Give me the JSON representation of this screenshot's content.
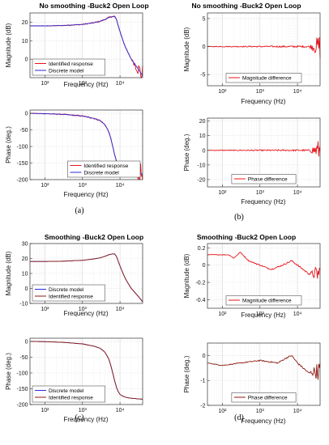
{
  "colors": {
    "red": "#e8141b",
    "blue": "#2a2ad8",
    "darkred": "#8b1a10",
    "grid": "#d9d9d9"
  },
  "chart_data": [
    {
      "panel": "(a)",
      "type": "line",
      "xscale": "log",
      "title": "No smoothing -Buck2 Open Loop",
      "subplots": [
        {
          "ylabel": "Magnitude (dB)",
          "xlabel": "Frequency (Hz)",
          "xlim": [
            40,
            40000
          ],
          "ylim": [
            -10,
            25
          ],
          "yticks": [
            20,
            10,
            0
          ],
          "xticks": [
            {
              "v": 100,
              "t": "10²"
            },
            {
              "v": 1000,
              "t": "10³"
            },
            {
              "v": 10000,
              "t": "10⁴"
            }
          ],
          "legend": "bottom-left",
          "series": [
            {
              "name": "Identified response",
              "color": "red",
              "noisy": true,
              "x": [
                40,
                100,
                300,
                1000,
                2000,
                3000,
                4000,
                5000,
                6000,
                7000,
                7500,
                8000,
                9000,
                10000,
                12000,
                15000,
                20000,
                30000,
                40000
              ],
              "y": [
                18,
                18,
                18.2,
                18.8,
                19.7,
                20.5,
                21.5,
                22.5,
                23,
                23.2,
                22.8,
                21.5,
                18,
                15,
                10,
                5,
                0,
                -5,
                -9
              ]
            },
            {
              "name": "Discrete model",
              "color": "blue",
              "noisy": false,
              "x": [
                40,
                100,
                300,
                1000,
                2000,
                3000,
                4000,
                5000,
                6000,
                7000,
                7500,
                8000,
                9000,
                10000,
                12000,
                15000,
                20000,
                30000,
                40000
              ],
              "y": [
                18,
                18,
                18.2,
                18.8,
                19.7,
                20.5,
                21.5,
                22.5,
                23,
                23.2,
                22.8,
                21.5,
                18,
                15,
                10,
                5,
                0,
                -5,
                -9
              ]
            }
          ]
        },
        {
          "ylabel": "Phase (deg.)",
          "xlabel": "Frequency (Hz)",
          "xlim": [
            40,
            40000
          ],
          "ylim": [
            -200,
            10
          ],
          "yticks": [
            0,
            -50,
            -100,
            -150,
            -200
          ],
          "xticks": [
            {
              "v": 100,
              "t": "10²"
            },
            {
              "v": 1000,
              "t": "10³"
            },
            {
              "v": 10000,
              "t": "10⁴"
            }
          ],
          "legend": "bottom-right",
          "series": [
            {
              "name": "Identified response",
              "color": "red",
              "noisy": true,
              "x": [
                40,
                100,
                300,
                1000,
                2000,
                3000,
                4000,
                5000,
                6000,
                7000,
                8000,
                9000,
                10000,
                12000,
                15000,
                20000,
                30000,
                40000
              ],
              "y": [
                0,
                -1,
                -3,
                -8,
                -15,
                -22,
                -35,
                -55,
                -85,
                -120,
                -145,
                -160,
                -168,
                -174,
                -178,
                -180,
                -182,
                -183
              ]
            },
            {
              "name": "Discrete model",
              "color": "blue",
              "noisy": false,
              "x": [
                40,
                100,
                300,
                1000,
                2000,
                3000,
                4000,
                5000,
                6000,
                7000,
                8000,
                9000,
                10000,
                12000,
                15000,
                20000,
                30000,
                40000
              ],
              "y": [
                0,
                -1,
                -3,
                -8,
                -15,
                -22,
                -35,
                -55,
                -85,
                -120,
                -145,
                -160,
                -168,
                -174,
                -178,
                -180,
                -182,
                -183
              ]
            }
          ]
        }
      ]
    },
    {
      "panel": "(b)",
      "type": "line",
      "xscale": "log",
      "title": "No smoothing -Buck2 Open Loop",
      "subplots": [
        {
          "ylabel": "Magnitude (dB)",
          "xlabel": "Frequency (Hz)",
          "xlim": [
            40,
            40000
          ],
          "ylim": [
            -7,
            6
          ],
          "yticks": [
            5,
            0,
            -5
          ],
          "xticks": [
            {
              "v": 100,
              "t": "10²"
            },
            {
              "v": 1000,
              "t": "10³"
            },
            {
              "v": 10000,
              "t": "10⁴"
            }
          ],
          "legend": "bottom-center",
          "series": [
            {
              "name": "Magnitude difference",
              "color": "red",
              "noisy": true,
              "x": [
                40,
                100,
                1000,
                5000,
                10000,
                20000,
                30000,
                40000
              ],
              "y": [
                0,
                0,
                0,
                0,
                0,
                0,
                0,
                0
              ]
            }
          ]
        },
        {
          "ylabel": "Phase (deg.)",
          "xlabel": "Frequency (Hz)",
          "xlim": [
            40,
            40000
          ],
          "ylim": [
            -25,
            22
          ],
          "yticks": [
            20,
            10,
            0,
            -10,
            -20
          ],
          "xticks": [
            {
              "v": 100,
              "t": "10²"
            },
            {
              "v": 1000,
              "t": "10³"
            },
            {
              "v": 10000,
              "t": "10⁴"
            }
          ],
          "legend": "bottom-center",
          "series": [
            {
              "name": "Phase difference",
              "color": "red",
              "noisy": true,
              "x": [
                40,
                100,
                1000,
                5000,
                10000,
                20000,
                30000,
                40000
              ],
              "y": [
                0,
                0,
                0,
                0,
                0,
                0,
                0,
                0
              ]
            }
          ]
        }
      ]
    },
    {
      "panel": "(c)",
      "type": "line",
      "xscale": "log",
      "title": "Smoothing -Buck2 Open Loop",
      "subplots": [
        {
          "ylabel": "Magnitude (dB)",
          "xlabel": "Frequency (Hz)",
          "xlim": [
            40,
            40000
          ],
          "ylim": [
            -10,
            30
          ],
          "yticks": [
            30,
            20,
            10,
            0,
            -10
          ],
          "xticks": [
            {
              "v": 100,
              "t": "10²"
            },
            {
              "v": 1000,
              "t": "10³"
            },
            {
              "v": 10000,
              "t": "10⁴"
            }
          ],
          "legend": "bottom-left",
          "series": [
            {
              "name": "Discrete model",
              "color": "blue",
              "noisy": false,
              "x": [
                40,
                100,
                300,
                1000,
                2000,
                3000,
                4000,
                5000,
                6000,
                7000,
                7500,
                8000,
                9000,
                10000,
                12000,
                15000,
                20000,
                30000,
                40000
              ],
              "y": [
                18,
                18,
                18.2,
                18.8,
                19.7,
                20.5,
                21.5,
                22.5,
                23,
                23.2,
                22.8,
                21.5,
                18,
                15,
                10,
                5,
                0,
                -5,
                -9
              ]
            },
            {
              "name": "Identified response",
              "color": "darkred",
              "noisy": false,
              "x": [
                40,
                100,
                300,
                1000,
                2000,
                3000,
                4000,
                5000,
                6000,
                7000,
                7500,
                8000,
                9000,
                10000,
                12000,
                15000,
                20000,
                30000,
                40000
              ],
              "y": [
                18,
                18,
                18.2,
                18.8,
                19.7,
                20.5,
                21.5,
                22.5,
                23,
                23.2,
                22.8,
                21.5,
                18,
                15,
                10,
                5,
                0,
                -5,
                -9
              ]
            }
          ]
        },
        {
          "ylabel": "Phase (deg.)",
          "xlabel": "Frequency (Hz)",
          "xlim": [
            40,
            40000
          ],
          "ylim": [
            -200,
            10
          ],
          "yticks": [
            0,
            -50,
            -100,
            -150,
            -200
          ],
          "xticks": [
            {
              "v": 100,
              "t": "10²"
            },
            {
              "v": 1000,
              "t": "10³"
            },
            {
              "v": 10000,
              "t": "10⁴"
            }
          ],
          "legend": "bottom-left",
          "series": [
            {
              "name": "Discrete model",
              "color": "blue",
              "noisy": false,
              "x": [
                40,
                100,
                300,
                1000,
                2000,
                3000,
                4000,
                5000,
                6000,
                7000,
                8000,
                9000,
                10000,
                12000,
                15000,
                20000,
                30000,
                40000
              ],
              "y": [
                0,
                -1,
                -3,
                -8,
                -15,
                -22,
                -35,
                -55,
                -85,
                -120,
                -145,
                -160,
                -168,
                -174,
                -178,
                -180,
                -182,
                -183
              ]
            },
            {
              "name": "Identified response",
              "color": "darkred",
              "noisy": false,
              "x": [
                40,
                100,
                300,
                1000,
                2000,
                3000,
                4000,
                5000,
                6000,
                7000,
                8000,
                9000,
                10000,
                12000,
                15000,
                20000,
                30000,
                40000
              ],
              "y": [
                0,
                -1,
                -3,
                -8,
                -15,
                -22,
                -35,
                -55,
                -85,
                -120,
                -145,
                -160,
                -168,
                -174,
                -178,
                -180,
                -182,
                -183
              ]
            }
          ]
        }
      ]
    },
    {
      "panel": "(d)",
      "type": "line",
      "xscale": "log",
      "title": "Smoothing -Buck2 Open Loop",
      "subplots": [
        {
          "ylabel": "Magnitude (dB)",
          "xlabel": "Frequency (Hz)",
          "xlim": [
            40,
            40000
          ],
          "ylim": [
            -0.5,
            0.25
          ],
          "yticks": [
            0.2,
            0,
            -0.2,
            -0.4
          ],
          "xticks": [
            {
              "v": 100,
              "t": "10²"
            },
            {
              "v": 1000,
              "t": "10³"
            },
            {
              "v": 10000,
              "t": "10⁴"
            }
          ],
          "legend": "bottom-center",
          "series": [
            {
              "name": "Magnitude difference",
              "color": "red",
              "noisy": true,
              "x": [
                40,
                100,
                150,
                200,
                300,
                500,
                1000,
                2000,
                4000,
                7000,
                10000,
                20000,
                40000
              ],
              "y": [
                0.12,
                0.12,
                0.12,
                0.08,
                0.15,
                0.05,
                0,
                -0.05,
                0,
                0.05,
                0,
                -0.1,
                -0.1
              ]
            }
          ]
        },
        {
          "ylabel": "Phase (deg.)",
          "xlabel": "Frequency (Hz)",
          "xlim": [
            40,
            40000
          ],
          "ylim": [
            -2,
            0.5
          ],
          "yticks": [
            0,
            -1,
            -2
          ],
          "xticks": [
            {
              "v": 100,
              "t": "10²"
            },
            {
              "v": 1000,
              "t": "10³"
            },
            {
              "v": 10000,
              "t": "10⁴"
            }
          ],
          "legend": "bottom-center",
          "series": [
            {
              "name": "Phase difference",
              "color": "darkred",
              "noisy": true,
              "x": [
                40,
                100,
                300,
                1000,
                3000,
                5000,
                7000,
                10000,
                20000,
                40000
              ],
              "y": [
                -0.3,
                -0.4,
                -0.3,
                -0.2,
                -0.3,
                -0.1,
                0,
                -0.3,
                -0.7,
                -0.6
              ]
            }
          ]
        }
      ]
    }
  ]
}
